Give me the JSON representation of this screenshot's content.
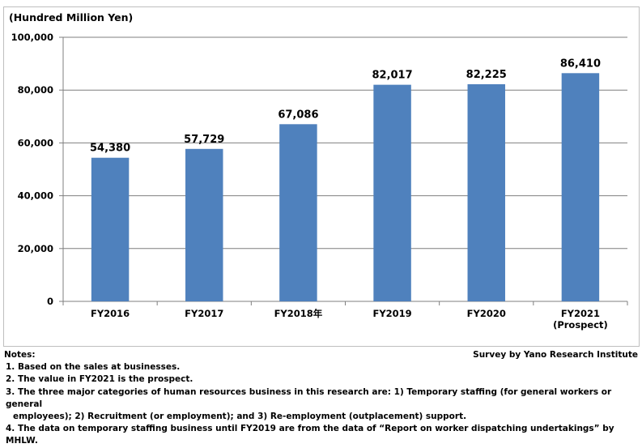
{
  "chart_data": {
    "type": "bar",
    "ylabel": "(Hundred Million Yen)",
    "categories": [
      "FY2016",
      "FY2017",
      "FY2018年",
      "FY2019",
      "FY2020",
      "FY2021\n(Prospect)"
    ],
    "values": [
      54380,
      57729,
      67086,
      82017,
      82225,
      86410
    ],
    "value_labels": [
      "54,380",
      "57,729",
      "67,086",
      "82,017",
      "82,225",
      "86,410"
    ],
    "ylim": [
      0,
      100000
    ],
    "yticks": [
      0,
      20000,
      40000,
      60000,
      80000,
      100000
    ],
    "ytick_labels": [
      "0",
      "20,000",
      "40,000",
      "60,000",
      "80,000",
      "100,000"
    ],
    "grid": true,
    "bar_color": "#4f81bd",
    "grid_color": "#7f7f7f"
  },
  "footer": {
    "notes_title": "Notes:",
    "source": "Survey by Yano Research Institute",
    "notes": [
      [
        "1. Based on the sales at businesses."
      ],
      [
        "2. The value in FY2021 is the prospect."
      ],
      [
        "3. The three major categories of human resources business in this research are: 1) Temporary staffing (for general workers or general",
        "employees); 2) Recruitment (or employment); and 3) Re-employment (outplacement) support."
      ],
      [
        "4. The data on temporary staffing business until FY2019 are from the data of “Report on worker dispatching undertakings” by MHLW."
      ]
    ]
  }
}
